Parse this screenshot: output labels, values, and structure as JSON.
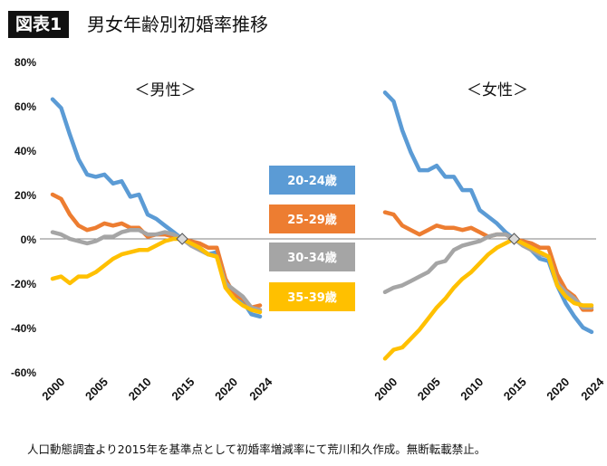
{
  "header": {
    "badge": "図表1",
    "title": "男女年齢別初婚率推移"
  },
  "footer": {
    "note": "人口動態調査より2015年を基準点として初婚率増減率にて荒川和久作成。無断転載禁止。"
  },
  "chart_data": {
    "type": "line",
    "ylim": [
      -60,
      80
    ],
    "yticks": [
      "80%",
      "60%",
      "40%",
      "20%",
      "0%",
      "-20%",
      "-40%",
      "-60%"
    ],
    "xticks": [
      "2000",
      "2005",
      "2010",
      "2015",
      "2020",
      "2024"
    ],
    "x": [
      2000,
      2001,
      2002,
      2003,
      2004,
      2005,
      2006,
      2007,
      2008,
      2009,
      2010,
      2011,
      2012,
      2013,
      2014,
      2015,
      2016,
      2017,
      2018,
      2019,
      2020,
      2021,
      2022,
      2023,
      2024
    ],
    "legend": [
      "20-24歳",
      "25-29歳",
      "30-34歳",
      "35-39歳"
    ],
    "colors": {
      "20-24歳": "#5b9bd5",
      "25-29歳": "#ed7d31",
      "30-34歳": "#a5a5a5",
      "35-39歳": "#ffc000",
      "zero_line": "#808080",
      "title_bg": "#111111"
    },
    "panels": [
      {
        "title": "＜男性＞",
        "series": [
          {
            "name": "20-24歳",
            "values": [
              63,
              59,
              47,
              36,
              29,
              28,
              29,
              25,
              26,
              19,
              20,
              11,
              9,
              6,
              3,
              0,
              -2,
              -4,
              -7,
              -6,
              -20,
              -25,
              -28,
              -34,
              -35
            ]
          },
          {
            "name": "25-29歳",
            "values": [
              20,
              18,
              11,
              6,
              4,
              5,
              7,
              6,
              7,
              5,
              5,
              1,
              2,
              2,
              1,
              0,
              -1,
              -2,
              -4,
              -4,
              -18,
              -25,
              -27,
              -31,
              -30
            ]
          },
          {
            "name": "30-34歳",
            "values": [
              3,
              2,
              0,
              -1,
              -2,
              -1,
              1,
              1,
              3,
              4,
              4,
              2,
              2,
              3,
              2,
              0,
              -3,
              -5,
              -7,
              -8,
              -20,
              -23,
              -26,
              -31,
              -32
            ]
          },
          {
            "name": "35-39歳",
            "values": [
              -18,
              -17,
              -20,
              -17,
              -17,
              -15,
              -12,
              -9,
              -7,
              -6,
              -5,
              -5,
              -3,
              -1,
              0,
              0,
              -2,
              -4,
              -7,
              -8,
              -22,
              -27,
              -30,
              -32,
              -33
            ]
          }
        ]
      },
      {
        "title": "＜女性＞",
        "series": [
          {
            "name": "20-24歳",
            "values": [
              66,
              62,
              49,
              39,
              31,
              31,
              33,
              28,
              28,
              22,
              22,
              13,
              10,
              7,
              3,
              0,
              -2,
              -5,
              -9,
              -10,
              -21,
              -29,
              -35,
              -40,
              -42
            ]
          },
          {
            "name": "25-29歳",
            "values": [
              12,
              11,
              6,
              4,
              2,
              4,
              6,
              5,
              5,
              4,
              5,
              3,
              1,
              2,
              2,
              0,
              -1,
              -2,
              -4,
              -4,
              -16,
              -23,
              -26,
              -32,
              -32
            ]
          },
          {
            "name": "30-34歳",
            "values": [
              -24,
              -22,
              -21,
              -19,
              -17,
              -15,
              -11,
              -10,
              -5,
              -3,
              -2,
              -1,
              1,
              2,
              2,
              0,
              -3,
              -5,
              -7,
              -8,
              -20,
              -24,
              -27,
              -31,
              -31
            ]
          },
          {
            "name": "35-39歳",
            "values": [
              -54,
              -50,
              -49,
              -45,
              -41,
              -36,
              -31,
              -27,
              -22,
              -18,
              -15,
              -11,
              -7,
              -4,
              -2,
              0,
              -2,
              -4,
              -6,
              -8,
              -21,
              -26,
              -29,
              -30,
              -30
            ]
          }
        ]
      }
    ]
  }
}
